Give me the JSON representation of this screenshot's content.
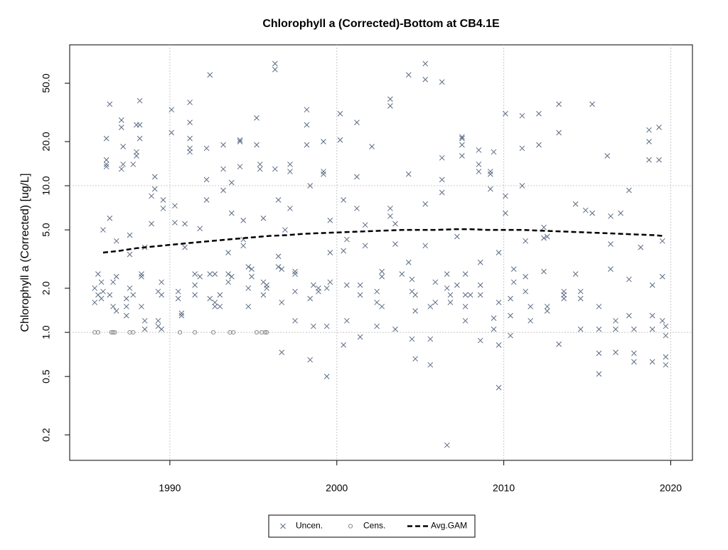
{
  "chart_data": {
    "type": "scatter",
    "title": "Chlorophyll a (Corrected)-Bottom at CB4.1E",
    "y_label": "Chlorophyll a (Corrected) [ug/L]",
    "log_y": true,
    "grid": true,
    "legend": "bottom",
    "xlim": [
      1984,
      2021.3
    ],
    "xticks": [
      1990,
      2000,
      2010,
      2020
    ],
    "ylim": [
      0.134,
      91.4
    ],
    "yticks": [
      0.2,
      0.5,
      {
        "value": 1,
        "label": "1.0"
      },
      {
        "value": 2,
        "label": "2.0"
      },
      {
        "value": 5,
        "label": "5.0"
      },
      {
        "value": 10,
        "label": "10.0"
      },
      {
        "value": 20,
        "label": "20.0"
      },
      {
        "value": 50,
        "label": "50.0"
      }
    ],
    "series": [
      {
        "name": "Uncen.",
        "color": "#5b6b82",
        "marker": "x",
        "x": [
          1985.5,
          1985.5,
          1985.7,
          1985.7,
          1985.9,
          1985.9,
          1986.0,
          1986.0,
          1986.2,
          1986.2,
          1986.2,
          1986.2,
          1986.4,
          1986.4,
          1986.4,
          1986.6,
          1986.6,
          1986.8,
          1986.8,
          1986.8,
          1987.1,
          1987.1,
          1987.1,
          1987.2,
          1987.2,
          1987.4,
          1987.4,
          1987.4,
          1987.6,
          1987.6,
          1987.6,
          1987.8,
          1987.8,
          1988.0,
          1988.0,
          1988.0,
          1988.2,
          1988.2,
          1988.2,
          1988.3,
          1988.3,
          1988.3,
          1988.5,
          1988.5,
          1988.5,
          1988.9,
          1988.9,
          1989.1,
          1989.1,
          1989.3,
          1989.3,
          1989.3,
          1989.5,
          1989.5,
          1989.5,
          1989.6,
          1989.6,
          1990.1,
          1990.1,
          1990.3,
          1990.3,
          1990.5,
          1990.5,
          1990.7,
          1990.7,
          1990.9,
          1990.9,
          1991.2,
          1991.2,
          1991.2,
          1991.2,
          1991.2,
          1991.5,
          1991.5,
          1991.5,
          1991.8,
          1991.8,
          1992.2,
          1992.2,
          1992.2,
          1992.4,
          1992.4,
          1992.4,
          1992.7,
          1992.7,
          1992.7,
          1993.0,
          1993.0,
          1993.2,
          1993.2,
          1993.2,
          1993.5,
          1993.5,
          1993.5,
          1993.7,
          1993.7,
          1993.7,
          1994.2,
          1994.2,
          1994.2,
          1994.4,
          1994.4,
          1994.4,
          1994.7,
          1994.7,
          1994.7,
          1994.9,
          1994.9,
          1995.2,
          1995.2,
          1995.4,
          1995.4,
          1995.6,
          1995.6,
          1995.6,
          1995.8,
          1995.8,
          1996.3,
          1996.3,
          1996.3,
          1996.5,
          1996.5,
          1996.5,
          1996.7,
          1996.7,
          1996.7,
          1996.9,
          1997.2,
          1997.2,
          1997.2,
          1997.5,
          1997.5,
          1997.5,
          1997.5,
          1998.2,
          1998.2,
          1998.2,
          1998.4,
          1998.4,
          1998.4,
          1998.6,
          1998.6,
          1998.9,
          1998.9,
          1999.2,
          1999.2,
          1999.2,
          1999.4,
          1999.4,
          1999.4,
          1999.6,
          1999.6,
          1999.6,
          2000.2,
          2000.2,
          2000.4,
          2000.4,
          2000.4,
          2000.6,
          2000.6,
          2000.6,
          2001.2,
          2001.2,
          2001.2,
          2001.4,
          2001.4,
          2001.4,
          2001.7,
          2001.7,
          2002.1,
          2002.4,
          2002.4,
          2002.4,
          2002.7,
          2002.7,
          2002.7,
          2003.2,
          2003.2,
          2003.2,
          2003.2,
          2003.5,
          2003.5,
          2003.5,
          2003.9,
          2004.3,
          2004.3,
          2004.3,
          2004.5,
          2004.5,
          2004.5,
          2004.7,
          2004.7,
          2004.7,
          2005.3,
          2005.3,
          2005.3,
          2005.3,
          2005.6,
          2005.6,
          2005.6,
          2005.9,
          2005.9,
          2006.3,
          2006.3,
          2006.3,
          2006.3,
          2006.6,
          2006.6,
          2006.6,
          2006.8,
          2006.8,
          2007.2,
          2007.2,
          2007.5,
          2007.5,
          2007.5,
          2007.5,
          2007.7,
          2007.7,
          2007.7,
          2007.7,
          2008.0,
          2008.5,
          2008.5,
          2008.5,
          2008.6,
          2008.6,
          2008.6,
          2008.6,
          2009.2,
          2009.2,
          2009.2,
          2009.4,
          2009.4,
          2009.4,
          2009.7,
          2009.7,
          2009.7,
          2009.7,
          2010.1,
          2010.1,
          2010.1,
          2010.4,
          2010.4,
          2010.4,
          2010.6,
          2010.6,
          2011.1,
          2011.1,
          2011.1,
          2011.3,
          2011.3,
          2011.3,
          2011.6,
          2011.6,
          2012.1,
          2012.1,
          2012.4,
          2012.4,
          2012.4,
          2012.6,
          2012.6,
          2012.6,
          2013.3,
          2013.3,
          2013.3,
          2013.6,
          2013.6,
          2013.6,
          2014.3,
          2014.3,
          2014.6,
          2014.6,
          2014.6,
          2014.9,
          2015.3,
          2015.3,
          2015.7,
          2015.7,
          2015.7,
          2015.7,
          2016.2,
          2016.4,
          2016.4,
          2016.4,
          2016.7,
          2016.7,
          2016.7,
          2017.0,
          2017.5,
          2017.5,
          2017.5,
          2017.8,
          2017.8,
          2017.8,
          2018.2,
          2018.7,
          2018.7,
          2018.7,
          2018.9,
          2018.9,
          2018.9,
          2018.9,
          2019.3,
          2019.3,
          2019.5,
          2019.5,
          2019.5,
          2019.7,
          2019.7,
          2019.7,
          2019.7
        ],
        "values": [
          2.0,
          1.6,
          2.5,
          1.8,
          2.2,
          1.7,
          5.0,
          1.9,
          21,
          14,
          15,
          13.5,
          36,
          6.0,
          1.8,
          1.5,
          2.2,
          2.4,
          1.4,
          4.2,
          13,
          28,
          25,
          18.5,
          14,
          1.3,
          1.7,
          1.5,
          2.0,
          4.6,
          3.4,
          14,
          1.8,
          26,
          17,
          16,
          38,
          21,
          26,
          2.5,
          1.5,
          2.4,
          1.05,
          1.2,
          3.8,
          8.5,
          5.5,
          11.5,
          9.5,
          1.2,
          1.9,
          1.1,
          2.2,
          1.8,
          1.05,
          8.0,
          7.0,
          23,
          33,
          7.3,
          5.6,
          1.9,
          1.7,
          1.35,
          1.3,
          5.5,
          3.8,
          27,
          37,
          21,
          18,
          17,
          2.5,
          2.1,
          1.8,
          5.1,
          2.4,
          8.0,
          11,
          18,
          57,
          2.5,
          1.7,
          1.5,
          2.5,
          1.6,
          1.8,
          1.5,
          13,
          19,
          9.3,
          2.5,
          2.2,
          3.5,
          10.5,
          6.5,
          2.4,
          20.5,
          20,
          13.5,
          4.3,
          3.9,
          5.8,
          1.5,
          2.0,
          2.8,
          2.7,
          2.4,
          19,
          29,
          14,
          13,
          6.0,
          1.8,
          2.2,
          2.0,
          2.1,
          68,
          62,
          13,
          8.0,
          3.3,
          2.8,
          2.7,
          1.6,
          0.73,
          5.0,
          12.5,
          14,
          7.0,
          2.5,
          2.6,
          1.9,
          1.2,
          33,
          26,
          19,
          10,
          1.7,
          0.65,
          1.1,
          2.1,
          1.9,
          2.0,
          20,
          12.5,
          12,
          0.5,
          2.0,
          1.1,
          2.2,
          3.5,
          5.8,
          20.5,
          31,
          8.0,
          3.6,
          0.82,
          2.1,
          1.2,
          4.3,
          11.5,
          27,
          7.0,
          1.8,
          2.1,
          0.93,
          5.4,
          3.9,
          18.5,
          1.6,
          1.9,
          1.1,
          2.6,
          2.4,
          1.5,
          35,
          39,
          7.0,
          6.2,
          1.05,
          4.0,
          5.5,
          2.5,
          57,
          12,
          3.0,
          0.9,
          2.3,
          1.9,
          0.66,
          1.4,
          1.8,
          68,
          53,
          7.5,
          3.9,
          0.6,
          1.5,
          0.9,
          1.6,
          2.2,
          51,
          15.5,
          11,
          9.0,
          0.17,
          2.5,
          2.0,
          1.6,
          1.8,
          4.5,
          2.1,
          21,
          19,
          16,
          21.5,
          1.8,
          1.5,
          2.5,
          1.2,
          1.8,
          14,
          17.5,
          12.5,
          0.88,
          2.1,
          3.0,
          1.8,
          12.5,
          12,
          9.5,
          17,
          1.25,
          1.05,
          0.42,
          3.5,
          0.82,
          1.6,
          31,
          8.5,
          6.5,
          0.95,
          1.7,
          1.3,
          2.7,
          2.2,
          30,
          18,
          10,
          4.2,
          2.4,
          1.9,
          1.2,
          1.5,
          31,
          19,
          4.4,
          5.2,
          2.6,
          1.4,
          1.5,
          4.5,
          36,
          23,
          0.83,
          1.9,
          1.8,
          1.7,
          7.5,
          2.5,
          1.05,
          1.9,
          1.7,
          6.8,
          36,
          6.5,
          1.5,
          0.52,
          0.72,
          1.05,
          16,
          4.0,
          6.2,
          2.7,
          1.05,
          1.2,
          0.73,
          6.5,
          9.3,
          2.3,
          1.3,
          0.72,
          0.63,
          1.05,
          3.8,
          20,
          24,
          15,
          1.3,
          1.05,
          2.1,
          0.63,
          25,
          15,
          4.2,
          2.4,
          1.2,
          0.68,
          0.95,
          0.6,
          1.1
        ]
      },
      {
        "name": "Cens.",
        "color": "#8a8a8a",
        "marker": "circle",
        "x": [
          1985.5,
          1985.7,
          1986.5,
          1986.6,
          1986.7,
          1987.6,
          1987.8,
          1990.6,
          1991.5,
          1992.6,
          1993.6,
          1993.8,
          1995.2,
          1995.5,
          1995.7,
          1995.8
        ],
        "values": [
          1,
          1,
          1,
          1,
          1,
          1,
          1,
          1,
          1,
          1,
          1,
          1,
          1,
          1,
          1,
          1
        ]
      },
      {
        "name": "Avg.GAM",
        "color": "#000000",
        "marker": "dashed-line",
        "x": [
          1986,
          1987,
          1988,
          1989,
          1990,
          1991,
          1992,
          1993,
          1994,
          1995,
          1996,
          1997,
          1998,
          1999,
          2000,
          2001,
          2002,
          2003,
          2004,
          2005,
          2006,
          2007,
          2008,
          2009,
          2010,
          2011,
          2012,
          2013,
          2014,
          2015,
          2016,
          2017,
          2018,
          2019,
          2019.5
        ],
        "values": [
          3.5,
          3.6,
          3.75,
          3.85,
          3.95,
          4.05,
          4.15,
          4.25,
          4.35,
          4.45,
          4.55,
          4.6,
          4.7,
          4.75,
          4.8,
          4.85,
          4.9,
          4.95,
          5.0,
          5.0,
          5.0,
          5.05,
          5.05,
          5.0,
          5.0,
          5.0,
          4.95,
          4.9,
          4.85,
          4.8,
          4.75,
          4.7,
          4.65,
          4.6,
          4.55
        ]
      }
    ]
  }
}
